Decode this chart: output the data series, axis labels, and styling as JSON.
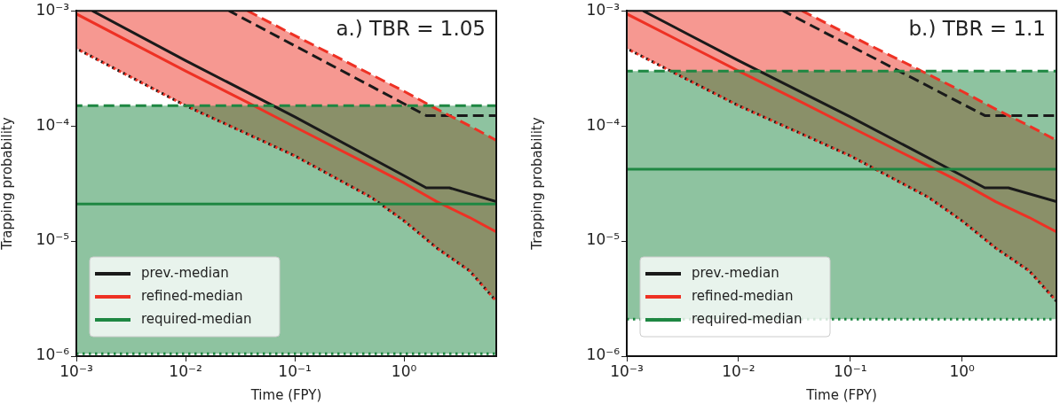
{
  "chart_data": [
    {
      "type": "line",
      "title": "a.) TBR = 1.05",
      "xlabel": "Time (FPY)",
      "ylabel": "Trapping probability",
      "log": "xy",
      "grid": false,
      "legend": "bottom left",
      "xlim": [
        0.001,
        7
      ],
      "ylim": [
        1e-06,
        0.001
      ],
      "xticks": [
        {
          "value": 0.001,
          "label": "10⁻³"
        },
        {
          "value": 0.01,
          "label": "10⁻²"
        },
        {
          "value": 0.1,
          "label": "10⁻¹"
        },
        {
          "value": 1,
          "label": "10⁰"
        }
      ],
      "yticks": [
        {
          "value": 1e-06,
          "label": "10⁻⁶"
        },
        {
          "value": 1e-05,
          "label": "10⁻⁵"
        },
        {
          "value": 0.0001,
          "label": "10⁻⁴"
        },
        {
          "value": 0.001,
          "label": "10⁻³"
        }
      ],
      "series": [
        {
          "name": "prev.-median",
          "color": "#1a1a1a",
          "line_style": "solid",
          "x": [
            0.0014,
            0.01,
            0.1,
            1,
            1.6,
            2.6,
            7
          ],
          "values": [
            0.001,
            0.00037,
            0.00012,
            3.7e-05,
            2.9e-05,
            2.9e-05,
            2.2e-05
          ]
        },
        {
          "color": "#1a1a1a",
          "line_style": "dashed",
          "x": [
            0.025,
            1.6,
            7
          ],
          "values": [
            0.001,
            0.000123,
            0.000123
          ]
        },
        {
          "color": "#1a1a1a",
          "line_style": "dotted",
          "x": [
            0.001,
            0.01,
            0.037,
            0.1,
            0.5,
            1,
            2,
            4,
            7
          ],
          "values": [
            0.00047,
            0.00015,
            8.5e-05,
            5.5e-05,
            2.4e-05,
            1.5e-05,
            8.7e-06,
            5.5e-06,
            3e-06
          ]
        },
        {
          "name": "refined-median",
          "color": "#ee3124",
          "line_style": "solid",
          "x": [
            0.001,
            0.01,
            0.037,
            0.1,
            0.5,
            1,
            2,
            4,
            7
          ],
          "values": [
            0.00094,
            0.0003,
            0.00016,
            9.8e-05,
            4.5e-05,
            3.2e-05,
            2.2e-05,
            1.6e-05,
            1.2e-05
          ],
          "lower": [
            0.00047,
            0.00015,
            8.5e-05,
            5.5e-05,
            2.4e-05,
            1.5e-05,
            8.7e-06,
            5.5e-06,
            3e-06
          ],
          "upper": [
            0.001,
            0.001,
            0.001,
            0.00061,
            0.00028,
            0.0002,
            0.00014,
            0.0001,
            7.5e-05
          ]
        },
        {
          "color": "#ee3124",
          "line_style": "dashed",
          "x": [
            0.037,
            0.1,
            0.5,
            1,
            2,
            4,
            7
          ],
          "values": [
            0.001,
            0.00061,
            0.00028,
            0.0002,
            0.00014,
            0.0001,
            7.5e-05
          ]
        },
        {
          "color": "#ee3124",
          "line_style": "dotted",
          "x": [
            0.001,
            0.01,
            0.037,
            0.1,
            0.5,
            1,
            2,
            4,
            7
          ],
          "values": [
            0.00047,
            0.00015,
            8.5e-05,
            5.5e-05,
            2.4e-05,
            1.5e-05,
            8.7e-06,
            5.5e-06,
            3e-06
          ]
        },
        {
          "name": "required-median",
          "color": "#1e8742",
          "line_style": "solid",
          "x": [
            0.001,
            7
          ],
          "values": [
            2.1e-05,
            2.1e-05
          ],
          "lower": [
            1.05e-06,
            1.05e-06
          ],
          "upper": [
            0.00015,
            0.00015
          ]
        },
        {
          "color": "#1e8742",
          "line_style": "dashed",
          "x": [
            0.001,
            7
          ],
          "values": [
            0.00015,
            0.00015
          ]
        },
        {
          "color": "#1e8742",
          "line_style": "dotted",
          "x": [
            0.001,
            7
          ],
          "values": [
            1.05e-06,
            1.05e-06
          ]
        }
      ]
    },
    {
      "type": "line",
      "title": "b.) TBR = 1.1",
      "xlabel": "Time (FPY)",
      "ylabel": "Trapping probability",
      "log": "xy",
      "grid": false,
      "legend": "bottom left",
      "xlim": [
        0.001,
        7
      ],
      "ylim": [
        1e-06,
        0.001
      ],
      "xticks": [
        {
          "value": 0.001,
          "label": "10⁻³"
        },
        {
          "value": 0.01,
          "label": "10⁻²"
        },
        {
          "value": 0.1,
          "label": "10⁻¹"
        },
        {
          "value": 1,
          "label": "10⁰"
        }
      ],
      "yticks": [
        {
          "value": 1e-06,
          "label": "10⁻⁶"
        },
        {
          "value": 1e-05,
          "label": "10⁻⁵"
        },
        {
          "value": 0.0001,
          "label": "10⁻⁴"
        },
        {
          "value": 0.001,
          "label": "10⁻³"
        }
      ],
      "series": [
        {
          "name": "prev.-median",
          "color": "#1a1a1a",
          "line_style": "solid",
          "x": [
            0.0014,
            0.01,
            0.1,
            1,
            1.6,
            2.6,
            7
          ],
          "values": [
            0.001,
            0.00037,
            0.00012,
            3.7e-05,
            2.9e-05,
            2.9e-05,
            2.2e-05
          ]
        },
        {
          "color": "#1a1a1a",
          "line_style": "dashed",
          "x": [
            0.025,
            1.6,
            7
          ],
          "values": [
            0.001,
            0.000123,
            0.000123
          ]
        },
        {
          "color": "#1a1a1a",
          "line_style": "dotted",
          "x": [
            0.001,
            0.01,
            0.037,
            0.1,
            0.5,
            1,
            2,
            4,
            7
          ],
          "values": [
            0.00047,
            0.00015,
            8.5e-05,
            5.5e-05,
            2.4e-05,
            1.5e-05,
            8.7e-06,
            5.5e-06,
            3e-06
          ]
        },
        {
          "name": "refined-median",
          "color": "#ee3124",
          "line_style": "solid",
          "x": [
            0.001,
            0.01,
            0.037,
            0.1,
            0.5,
            1,
            2,
            4,
            7
          ],
          "values": [
            0.00094,
            0.0003,
            0.00016,
            9.8e-05,
            4.5e-05,
            3.2e-05,
            2.2e-05,
            1.6e-05,
            1.2e-05
          ],
          "lower": [
            0.00047,
            0.00015,
            8.5e-05,
            5.5e-05,
            2.4e-05,
            1.5e-05,
            8.7e-06,
            5.5e-06,
            3e-06
          ],
          "upper": [
            0.001,
            0.001,
            0.001,
            0.00061,
            0.00028,
            0.0002,
            0.00014,
            0.0001,
            7.5e-05
          ]
        },
        {
          "color": "#ee3124",
          "line_style": "dashed",
          "x": [
            0.037,
            0.1,
            0.5,
            1,
            2,
            4,
            7
          ],
          "values": [
            0.001,
            0.00061,
            0.00028,
            0.0002,
            0.00014,
            0.0001,
            7.5e-05
          ]
        },
        {
          "color": "#ee3124",
          "line_style": "dotted",
          "x": [
            0.001,
            0.01,
            0.037,
            0.1,
            0.5,
            1,
            2,
            4,
            7
          ],
          "values": [
            0.00047,
            0.00015,
            8.5e-05,
            5.5e-05,
            2.4e-05,
            1.5e-05,
            8.7e-06,
            5.5e-06,
            3e-06
          ]
        },
        {
          "name": "required-median",
          "color": "#1e8742",
          "line_style": "solid",
          "x": [
            0.001,
            7
          ],
          "values": [
            4.2e-05,
            4.2e-05
          ],
          "lower": [
            2.1e-06,
            2.1e-06
          ],
          "upper": [
            0.0003,
            0.0003
          ]
        },
        {
          "color": "#1e8742",
          "line_style": "dashed",
          "x": [
            0.001,
            7
          ],
          "values": [
            0.0003,
            0.0003
          ]
        },
        {
          "color": "#1e8742",
          "line_style": "dotted",
          "x": [
            0.001,
            7
          ],
          "values": [
            2.1e-06,
            2.1e-06
          ]
        }
      ]
    }
  ]
}
